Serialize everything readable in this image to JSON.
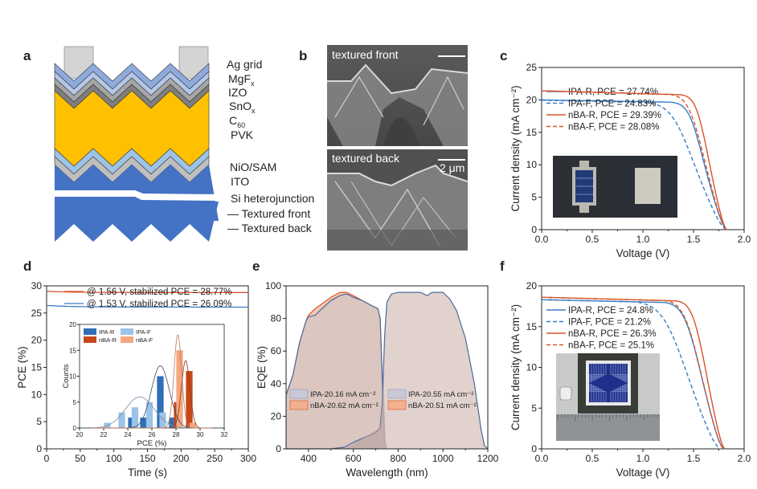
{
  "panels": {
    "a": {
      "letter": "a",
      "layers": [
        "Ag grid",
        "MgFx",
        "IZO",
        "SnOx",
        "C60",
        "PVK",
        "NiO/SAM",
        "ITO",
        "Si heterojunction",
        "— Textured front",
        "— Textured back"
      ],
      "layer_labels": {
        "ag": "Ag grid",
        "mgf_base": "MgF",
        "mgf_sub": "x",
        "izo": "IZO",
        "sno_base": "SnO",
        "sno_sub": "x",
        "c60_base": "C",
        "c60_sub": "60",
        "pvk": "PVK",
        "nio": "NiO/SAM",
        "ito": "ITO",
        "si": "Si heterojunction",
        "front": "— Textured front",
        "back": "— Textured back"
      },
      "colors": {
        "ag": "#d4d4d4",
        "mgf": "#8faadc",
        "izo": "#b4c7e7",
        "sno": "#a6a6a6",
        "c60": "#7f7f7f",
        "pvk": "#ffc000",
        "nio": "#9dc3e6",
        "ito": "#bfbfbf",
        "si": "#4472c4"
      }
    },
    "b": {
      "letter": "b",
      "top_label": "textured front",
      "bottom_label": "textured back",
      "scale_bar": "2 μm"
    }
  },
  "chart_data": [
    {
      "id": "c",
      "letter": "c",
      "type": "line",
      "xlabel": "Voltage (V)",
      "ylabel": "Current density (mA cm⁻²)",
      "xlim": [
        0,
        2.0
      ],
      "ylim": [
        0,
        25
      ],
      "xticks": [
        "0.0",
        "0.5",
        "1.0",
        "1.5",
        "2.0"
      ],
      "yticks": [
        "0",
        "5",
        "10",
        "15",
        "20",
        "25"
      ],
      "legend_position": "left",
      "series": [
        {
          "name": "IPA-R,  PCE = 27.74%",
          "color": "#3a7dc4",
          "dash": false,
          "jsc": 20.0,
          "voc": 1.83,
          "knee": 1.52,
          "sag": 0.5,
          "sharp": 16
        },
        {
          "name": "IPA-F,  PCE = 24.83%",
          "color": "#3a7dc4",
          "dash": true,
          "jsc": 19.95,
          "voc": 1.83,
          "knee": 1.38,
          "sag": 0.6,
          "sharp": 10
        },
        {
          "name": "nBA-R,  PCE = 29.39%",
          "color": "#d9532b",
          "dash": false,
          "jsc": 21.4,
          "voc": 1.83,
          "knee": 1.58,
          "sag": 0.8,
          "sharp": 18
        },
        {
          "name": "nBA-F,  PCE = 28.08%",
          "color": "#d9532b",
          "dash": true,
          "jsc": 21.4,
          "voc": 1.83,
          "knee": 1.52,
          "sag": 0.8,
          "sharp": 14
        }
      ],
      "inset": "photo of device front and back"
    },
    {
      "id": "d",
      "letter": "d",
      "type": "line",
      "xlabel": "Time (s)",
      "ylabel": "PCE (%)",
      "xlim": [
        0,
        300
      ],
      "ylim": [
        0,
        30
      ],
      "xticks": [
        "0",
        "50",
        "100",
        "150",
        "200",
        "250",
        "300"
      ],
      "yticks": [
        "0",
        "5",
        "10",
        "15",
        "20",
        "25",
        "30"
      ],
      "legend_position": "top-right",
      "series": [
        {
          "name": "@ 1.56 V, stabilized PCE = 28.77%",
          "color": "#d9532b",
          "start": 29.0,
          "end": 28.77
        },
        {
          "name": "@ 1.53 V, stabilized PCE = 26.09%",
          "color": "#3a7dc4",
          "start": 26.4,
          "end": 26.09
        }
      ],
      "inset": {
        "type": "bar",
        "xlabel": "PCE (%)",
        "ylabel": "Counts",
        "xlim": [
          20,
          32
        ],
        "ylim": [
          0,
          20
        ],
        "xticks": [
          "20",
          "22",
          "24",
          "26",
          "28",
          "30",
          "32"
        ],
        "yticks": [
          "0",
          "5",
          "10",
          "15",
          "20"
        ],
        "legend_position": "top-left",
        "series": [
          {
            "name": "IPA-R",
            "color": "#2f6fb5",
            "bins": [
              24.3,
              25.3,
              26.7,
              27.7
            ],
            "counts": [
              2,
              2,
              10,
              2
            ],
            "fit_mu": 26.7,
            "fit_sigma": 0.75,
            "fit_peak": 12
          },
          {
            "name": "IPA-F",
            "color": "#9cc3e8",
            "bins": [
              22.3,
              23.5,
              24.6,
              25.8,
              26.9
            ],
            "counts": [
              1,
              3,
              4,
              5,
              3
            ],
            "fit_mu": 25.0,
            "fit_sigma": 1.2,
            "fit_peak": 6
          },
          {
            "name": "nBA-R",
            "color": "#c8471a",
            "bins": [
              28.1,
              29.1
            ],
            "counts": [
              5,
              11
            ],
            "fit_mu": 28.8,
            "fit_sigma": 0.35,
            "fit_peak": 13
          },
          {
            "name": "nBA-F",
            "color": "#f4a77e",
            "bins": [
              28.3,
              29.4
            ],
            "counts": [
              15,
              1
            ],
            "fit_mu": 28.15,
            "fit_sigma": 0.32,
            "fit_peak": 18
          }
        ]
      }
    },
    {
      "id": "e",
      "letter": "e",
      "type": "area",
      "xlabel": "Wavelength (nm)",
      "ylabel": "EQE (%)",
      "xlim": [
        300,
        1200
      ],
      "ylim": [
        0,
        100
      ],
      "xticks": [
        "400",
        "600",
        "800",
        "1000",
        "1200"
      ],
      "yticks": [
        "0",
        "20",
        "40",
        "60",
        "80",
        "100"
      ],
      "legend_position": "bottom",
      "legend_left": [
        {
          "name": "IPA-20.16  mA cm⁻²",
          "color": "#c9c8d6"
        },
        {
          "name": "nBA-20.62 mA cm⁻²",
          "color": "#f2b08e"
        }
      ],
      "legend_right": [
        {
          "name": "IPA-20.55 mA cm⁻²",
          "color": "#c9c8d6"
        },
        {
          "name": "nBA-20.51 mA cm⁻²",
          "color": "#f2b08e"
        }
      ],
      "perovskite_IPA": [
        [
          300,
          33
        ],
        [
          330,
          45
        ],
        [
          360,
          65
        ],
        [
          390,
          79
        ],
        [
          400,
          81
        ],
        [
          430,
          82
        ],
        [
          460,
          86
        ],
        [
          500,
          91
        ],
        [
          540,
          94
        ],
        [
          570,
          95
        ],
        [
          600,
          93
        ],
        [
          640,
          91
        ],
        [
          680,
          88
        ],
        [
          710,
          86
        ],
        [
          720,
          80
        ],
        [
          730,
          40
        ],
        [
          740,
          5
        ],
        [
          750,
          0
        ]
      ],
      "perovskite_nBA": [
        [
          300,
          33
        ],
        [
          330,
          45
        ],
        [
          360,
          65
        ],
        [
          390,
          79
        ],
        [
          400,
          82
        ],
        [
          430,
          86
        ],
        [
          460,
          89
        ],
        [
          500,
          93
        ],
        [
          540,
          96
        ],
        [
          570,
          96
        ],
        [
          600,
          94
        ],
        [
          640,
          91
        ],
        [
          680,
          88
        ],
        [
          710,
          86
        ],
        [
          720,
          80
        ],
        [
          730,
          40
        ],
        [
          740,
          5
        ],
        [
          750,
          0
        ]
      ],
      "silicon": [
        [
          300,
          0
        ],
        [
          500,
          0
        ],
        [
          560,
          1
        ],
        [
          600,
          4
        ],
        [
          650,
          7
        ],
        [
          700,
          10
        ],
        [
          720,
          13
        ],
        [
          730,
          30
        ],
        [
          740,
          70
        ],
        [
          750,
          90
        ],
        [
          770,
          95
        ],
        [
          800,
          96
        ],
        [
          850,
          96
        ],
        [
          900,
          96
        ],
        [
          930,
          94
        ],
        [
          950,
          96
        ],
        [
          1000,
          96
        ],
        [
          1030,
          92
        ],
        [
          1060,
          85
        ],
        [
          1100,
          68
        ],
        [
          1140,
          40
        ],
        [
          1170,
          12
        ],
        [
          1185,
          2
        ],
        [
          1200,
          0
        ]
      ]
    },
    {
      "id": "f",
      "letter": "f",
      "type": "line",
      "xlabel": "Voltage (V)",
      "ylabel": "Current density (mA cm⁻²)",
      "xlim": [
        0,
        2.0
      ],
      "ylim": [
        0,
        20
      ],
      "xticks": [
        "0.0",
        "0.5",
        "1.0",
        "1.5",
        "2.0"
      ],
      "yticks": [
        "0",
        "5",
        "10",
        "15",
        "20"
      ],
      "legend_position": "left",
      "series": [
        {
          "name": "IPA-R, PCE = 24.8%",
          "color": "#3a7dc4",
          "dash": false,
          "jsc": 18.3,
          "voc": 1.8,
          "knee": 1.48,
          "sag": 0.5,
          "sharp": 13
        },
        {
          "name": "IPA-F, PCE = 21.2%",
          "color": "#3a7dc4",
          "dash": true,
          "jsc": 18.3,
          "voc": 1.77,
          "knee": 1.3,
          "sag": 0.5,
          "sharp": 9
        },
        {
          "name": "nBA-R, PCE = 26.3%",
          "color": "#d9532b",
          "dash": false,
          "jsc": 18.6,
          "voc": 1.81,
          "knee": 1.55,
          "sag": 0.6,
          "sharp": 16
        },
        {
          "name": "nBA-F, PCE = 25.1%",
          "color": "#d9532b",
          "dash": true,
          "jsc": 18.6,
          "voc": 1.8,
          "knee": 1.48,
          "sag": 0.6,
          "sharp": 13
        }
      ],
      "inset": "photo of large-area device with ruler"
    }
  ]
}
